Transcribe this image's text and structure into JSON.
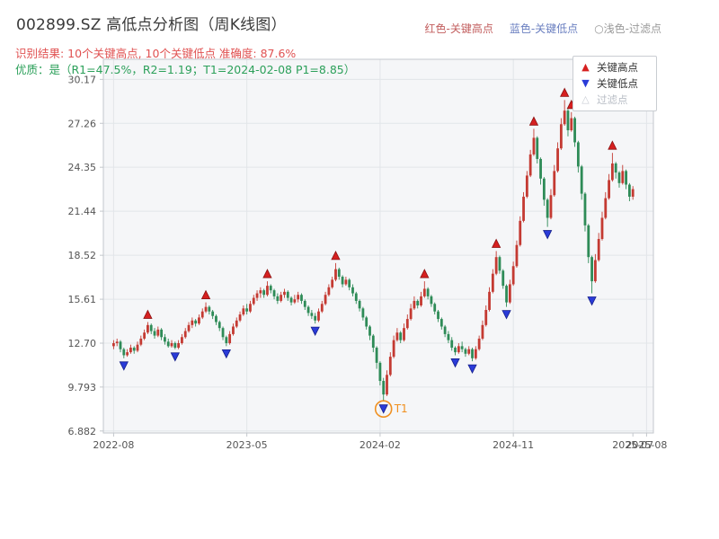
{
  "header": {
    "title": "002899.SZ 高低点分析图（周K线图）",
    "note_high": "红色-关键高点",
    "note_low": "蓝色-关键低点",
    "note_filter": "○浅色-过滤点",
    "result_line": "识别结果: 10个关键高点, 10个关键低点  准确度: 87.6%",
    "quality_line": "优质：是（R1=47.5%，R2=1.19；T1=2024-02-08 P1=8.85）",
    "colors": {
      "title": "#3a3a3a",
      "note_high": "#c25e5e",
      "note_low": "#6a7fc0",
      "note_filter": "#9a9a9a",
      "result": "#e05252",
      "quality": "#2ca05a"
    }
  },
  "legend": {
    "items": [
      {
        "glyph": "▲",
        "label": "关键高点",
        "color": "#d62020",
        "text_color": "#333333"
      },
      {
        "glyph": "▼",
        "label": "关键低点",
        "color": "#2a3bd8",
        "text_color": "#333333"
      },
      {
        "glyph": "△",
        "label": "过滤点",
        "color": "#c9cdd4",
        "text_color": "#b9bec6"
      }
    ]
  },
  "chart_data": {
    "type": "candlestick",
    "title": "002899.SZ 高低点分析图（周K线图）",
    "xlabel": "",
    "ylabel": "",
    "frequency": "weekly",
    "ylim": [
      6.75,
      31.5
    ],
    "grid": true,
    "legend_position": "upper-right",
    "y_ticks": [
      {
        "value": 30.17,
        "label": "30.17"
      },
      {
        "value": 27.26,
        "label": "27.26"
      },
      {
        "value": 24.35,
        "label": "24.35"
      },
      {
        "value": 21.44,
        "label": "21.44"
      },
      {
        "value": 18.52,
        "label": "18.52"
      },
      {
        "value": 15.61,
        "label": "15.61"
      },
      {
        "value": 12.7,
        "label": "12.70"
      },
      {
        "value": 9.793,
        "label": "9.793"
      },
      {
        "value": 6.882,
        "label": "6.882"
      }
    ],
    "x_ticks": [
      {
        "week": 0,
        "label": "2022-08",
        "grid": true
      },
      {
        "week": 39,
        "label": "2023-05",
        "grid": true
      },
      {
        "week": 78,
        "label": "2024-02",
        "grid": true
      },
      {
        "week": 117,
        "label": "2024-11",
        "grid": true
      },
      {
        "week": 152,
        "label": "2025-07",
        "grid": false
      },
      {
        "week": 156,
        "label": "2025-08",
        "grid": true
      }
    ],
    "candles": [
      [
        12.5,
        12.9,
        12.3,
        12.7
      ],
      [
        12.7,
        13.0,
        12.5,
        12.8
      ],
      [
        12.8,
        12.9,
        12.1,
        12.3
      ],
      [
        12.3,
        12.4,
        11.7,
        11.9
      ],
      [
        11.9,
        12.3,
        11.8,
        12.1
      ],
      [
        12.1,
        12.6,
        12.0,
        12.4
      ],
      [
        12.4,
        12.5,
        12.0,
        12.2
      ],
      [
        12.2,
        12.8,
        12.1,
        12.6
      ],
      [
        12.6,
        13.2,
        12.5,
        13.0
      ],
      [
        13.0,
        13.6,
        12.9,
        13.4
      ],
      [
        13.4,
        14.1,
        13.3,
        13.9
      ],
      [
        13.9,
        14.0,
        13.3,
        13.5
      ],
      [
        13.5,
        13.7,
        13.0,
        13.2
      ],
      [
        13.2,
        13.8,
        13.1,
        13.6
      ],
      [
        13.6,
        13.7,
        12.9,
        13.1
      ],
      [
        13.1,
        13.3,
        12.6,
        12.8
      ],
      [
        12.8,
        13.0,
        12.4,
        12.5
      ],
      [
        12.5,
        12.9,
        12.4,
        12.7
      ],
      [
        12.7,
        12.8,
        12.3,
        12.4
      ],
      [
        12.4,
        12.9,
        12.3,
        12.7
      ],
      [
        12.7,
        13.3,
        12.6,
        13.1
      ],
      [
        13.1,
        13.7,
        13.0,
        13.5
      ],
      [
        13.5,
        14.1,
        13.4,
        13.9
      ],
      [
        13.9,
        14.4,
        13.7,
        14.2
      ],
      [
        14.2,
        14.3,
        13.8,
        14.0
      ],
      [
        14.0,
        14.6,
        13.9,
        14.4
      ],
      [
        14.4,
        15.0,
        14.3,
        14.8
      ],
      [
        14.8,
        15.4,
        14.7,
        15.1
      ],
      [
        15.1,
        15.2,
        14.6,
        14.8
      ],
      [
        14.8,
        14.9,
        14.3,
        14.5
      ],
      [
        14.5,
        14.6,
        13.9,
        14.1
      ],
      [
        14.1,
        14.2,
        13.5,
        13.7
      ],
      [
        13.7,
        13.8,
        12.9,
        13.1
      ],
      [
        13.1,
        13.2,
        12.5,
        12.7
      ],
      [
        12.7,
        13.5,
        12.6,
        13.3
      ],
      [
        13.3,
        14.0,
        13.2,
        13.8
      ],
      [
        13.8,
        14.4,
        13.7,
        14.2
      ],
      [
        14.2,
        14.8,
        14.1,
        14.6
      ],
      [
        14.6,
        15.2,
        14.5,
        15.0
      ],
      [
        15.0,
        15.3,
        14.6,
        14.8
      ],
      [
        14.8,
        15.5,
        14.7,
        15.3
      ],
      [
        15.3,
        15.9,
        15.2,
        15.7
      ],
      [
        15.7,
        16.2,
        15.5,
        16.0
      ],
      [
        16.0,
        16.4,
        15.7,
        16.2
      ],
      [
        16.2,
        16.3,
        15.7,
        15.9
      ],
      [
        15.9,
        16.8,
        15.8,
        16.5
      ],
      [
        16.5,
        16.6,
        16.0,
        16.2
      ],
      [
        16.2,
        16.3,
        15.6,
        15.8
      ],
      [
        15.8,
        16.0,
        15.3,
        15.5
      ],
      [
        15.5,
        16.1,
        15.4,
        15.9
      ],
      [
        15.9,
        16.3,
        15.7,
        16.1
      ],
      [
        16.1,
        16.2,
        15.5,
        15.7
      ],
      [
        15.7,
        15.8,
        15.2,
        15.4
      ],
      [
        15.4,
        15.9,
        15.3,
        15.6
      ],
      [
        15.6,
        16.1,
        15.4,
        15.9
      ],
      [
        15.9,
        16.0,
        15.3,
        15.5
      ],
      [
        15.5,
        15.6,
        14.9,
        15.1
      ],
      [
        15.1,
        15.2,
        14.5,
        14.7
      ],
      [
        14.7,
        14.9,
        14.3,
        14.5
      ],
      [
        14.5,
        14.7,
        14.0,
        14.2
      ],
      [
        14.2,
        15.0,
        14.1,
        14.8
      ],
      [
        14.8,
        15.5,
        14.7,
        15.3
      ],
      [
        15.3,
        16.1,
        15.2,
        15.9
      ],
      [
        15.9,
        16.6,
        15.8,
        16.4
      ],
      [
        16.4,
        17.1,
        16.3,
        16.9
      ],
      [
        16.9,
        18.0,
        16.8,
        17.6
      ],
      [
        17.6,
        17.7,
        16.9,
        17.1
      ],
      [
        17.1,
        17.2,
        16.4,
        16.6
      ],
      [
        16.6,
        17.1,
        16.5,
        16.9
      ],
      [
        16.9,
        17.0,
        16.2,
        16.4
      ],
      [
        16.4,
        16.6,
        15.8,
        16.0
      ],
      [
        16.0,
        16.1,
        15.3,
        15.5
      ],
      [
        15.5,
        15.6,
        14.8,
        15.0
      ],
      [
        15.0,
        15.1,
        14.2,
        14.4
      ],
      [
        14.4,
        14.5,
        13.6,
        13.8
      ],
      [
        13.8,
        13.9,
        12.9,
        13.2
      ],
      [
        13.2,
        13.3,
        12.1,
        12.4
      ],
      [
        12.4,
        12.5,
        11.0,
        11.4
      ],
      [
        11.4,
        11.5,
        9.9,
        10.2
      ],
      [
        10.2,
        10.4,
        8.85,
        9.3
      ],
      [
        9.3,
        10.9,
        9.2,
        10.6
      ],
      [
        10.6,
        12.1,
        10.5,
        11.8
      ],
      [
        11.8,
        13.2,
        11.7,
        12.9
      ],
      [
        12.9,
        13.7,
        12.8,
        13.4
      ],
      [
        13.4,
        13.5,
        12.7,
        12.9
      ],
      [
        12.9,
        14.0,
        12.8,
        13.7
      ],
      [
        13.7,
        14.6,
        13.6,
        14.3
      ],
      [
        14.3,
        15.3,
        14.2,
        15.0
      ],
      [
        15.0,
        15.8,
        14.9,
        15.5
      ],
      [
        15.5,
        15.6,
        15.0,
        15.2
      ],
      [
        15.2,
        16.1,
        15.1,
        15.8
      ],
      [
        15.8,
        16.8,
        15.7,
        16.3
      ],
      [
        16.3,
        16.4,
        15.6,
        15.8
      ],
      [
        15.8,
        15.9,
        15.1,
        15.3
      ],
      [
        15.3,
        15.4,
        14.6,
        14.8
      ],
      [
        14.8,
        14.9,
        14.1,
        14.3
      ],
      [
        14.3,
        14.4,
        13.6,
        13.8
      ],
      [
        13.8,
        13.9,
        13.1,
        13.3
      ],
      [
        13.3,
        13.5,
        12.7,
        12.9
      ],
      [
        12.9,
        13.1,
        12.2,
        12.4
      ],
      [
        12.4,
        12.5,
        11.9,
        12.1
      ],
      [
        12.1,
        12.7,
        12.0,
        12.5
      ],
      [
        12.5,
        12.8,
        12.1,
        12.3
      ],
      [
        12.3,
        12.4,
        11.8,
        12.0
      ],
      [
        12.0,
        12.5,
        11.9,
        12.3
      ],
      [
        12.3,
        12.4,
        11.5,
        11.7
      ],
      [
        11.7,
        12.5,
        11.6,
        12.3
      ],
      [
        12.3,
        13.2,
        12.2,
        13.0
      ],
      [
        13.0,
        14.2,
        12.9,
        13.9
      ],
      [
        13.9,
        15.2,
        13.8,
        14.9
      ],
      [
        14.9,
        16.4,
        14.8,
        16.1
      ],
      [
        16.1,
        17.6,
        16.0,
        17.3
      ],
      [
        17.3,
        18.8,
        17.2,
        18.4
      ],
      [
        18.4,
        18.5,
        17.3,
        17.5
      ],
      [
        17.5,
        17.6,
        16.3,
        16.5
      ],
      [
        16.5,
        16.6,
        15.1,
        15.4
      ],
      [
        15.4,
        16.9,
        15.3,
        16.6
      ],
      [
        16.6,
        18.1,
        16.5,
        17.8
      ],
      [
        17.8,
        19.5,
        17.7,
        19.2
      ],
      [
        19.2,
        21.1,
        19.1,
        20.8
      ],
      [
        20.8,
        22.7,
        20.7,
        22.4
      ],
      [
        22.4,
        24.1,
        22.3,
        23.8
      ],
      [
        23.8,
        25.5,
        23.7,
        25.2
      ],
      [
        25.2,
        26.9,
        25.1,
        26.3
      ],
      [
        26.3,
        26.4,
        24.6,
        24.9
      ],
      [
        24.9,
        25.0,
        23.2,
        23.6
      ],
      [
        23.6,
        23.7,
        21.8,
        22.2
      ],
      [
        22.2,
        22.3,
        20.4,
        21.0
      ],
      [
        21.0,
        22.9,
        20.9,
        22.5
      ],
      [
        22.5,
        24.5,
        22.4,
        24.1
      ],
      [
        24.1,
        26.0,
        24.0,
        25.6
      ],
      [
        25.6,
        27.6,
        25.5,
        27.2
      ],
      [
        27.2,
        28.8,
        27.1,
        28.1
      ],
      [
        28.1,
        28.2,
        26.4,
        26.8
      ],
      [
        26.8,
        28.0,
        26.7,
        27.6
      ],
      [
        27.6,
        27.7,
        25.7,
        26.0
      ],
      [
        26.0,
        26.1,
        24.0,
        24.4
      ],
      [
        24.4,
        24.5,
        22.2,
        22.6
      ],
      [
        22.6,
        22.7,
        20.1,
        20.5
      ],
      [
        20.5,
        20.6,
        18.0,
        18.4
      ],
      [
        18.4,
        18.5,
        16.0,
        16.8
      ],
      [
        16.8,
        18.6,
        16.7,
        18.2
      ],
      [
        18.2,
        20.0,
        18.1,
        19.6
      ],
      [
        19.6,
        21.4,
        19.5,
        21.0
      ],
      [
        21.0,
        22.7,
        20.9,
        22.3
      ],
      [
        22.3,
        23.9,
        22.2,
        23.5
      ],
      [
        23.5,
        25.3,
        23.4,
        24.6
      ],
      [
        24.6,
        24.7,
        23.6,
        24.0
      ],
      [
        24.0,
        24.1,
        23.0,
        23.3
      ],
      [
        23.3,
        24.5,
        23.2,
        24.1
      ],
      [
        24.1,
        24.2,
        22.9,
        23.2
      ],
      [
        23.2,
        23.3,
        22.1,
        22.4
      ],
      [
        22.4,
        23.1,
        22.2,
        22.9
      ]
    ],
    "key_highs": [
      {
        "week": 10,
        "price": 14.1
      },
      {
        "week": 27,
        "price": 15.4
      },
      {
        "week": 45,
        "price": 16.8
      },
      {
        "week": 65,
        "price": 18.0
      },
      {
        "week": 91,
        "price": 16.8
      },
      {
        "week": 112,
        "price": 18.8
      },
      {
        "week": 123,
        "price": 26.9
      },
      {
        "week": 132,
        "price": 28.8
      },
      {
        "week": 134,
        "price": 28.0
      },
      {
        "week": 146,
        "price": 25.3
      }
    ],
    "key_lows": [
      {
        "week": 3,
        "price": 11.7
      },
      {
        "week": 18,
        "price": 12.3
      },
      {
        "week": 33,
        "price": 12.5
      },
      {
        "week": 59,
        "price": 14.0
      },
      {
        "week": 79,
        "price": 8.85
      },
      {
        "week": 100,
        "price": 11.9
      },
      {
        "week": 105,
        "price": 11.5
      },
      {
        "week": 115,
        "price": 15.1
      },
      {
        "week": 127,
        "price": 20.4
      },
      {
        "week": 140,
        "price": 16.0
      }
    ],
    "t1": {
      "week": 79,
      "price": 8.85,
      "label": "T1"
    },
    "colors": {
      "up": "#c43a32",
      "down": "#2e8b57",
      "marker_high": "#d62020",
      "marker_high_edge": "#8b1010",
      "marker_low": "#2a3bd8",
      "marker_low_edge": "#151f8a",
      "annotation": "#f09020",
      "plot_bg": "#f5f6f8",
      "grid": "#e2e5e9",
      "spine": "#c3c7cc",
      "tick_text": "#555555"
    }
  }
}
